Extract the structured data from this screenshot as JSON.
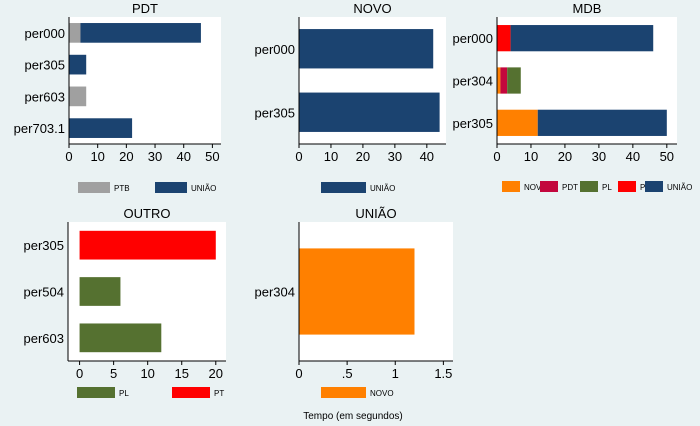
{
  "chart_data": {
    "type": "bar",
    "orientation": "horizontal",
    "stacked": true,
    "xlabel": "Tempo (em segundos)",
    "colors": {
      "PTB": "#a0a0a0",
      "UNIÃO": "#1b4370",
      "NOVO": "#ff8000",
      "PDT": "#c3073d",
      "PL": "#557130",
      "PT": "#ff0000"
    },
    "panels": [
      {
        "title": "PDT",
        "categories": [
          "per000",
          "per305",
          "per603",
          "per703.1"
        ],
        "series": [
          {
            "name": "PTB",
            "values": [
              4,
              0,
              6,
              0
            ]
          },
          {
            "name": "UNIÃO",
            "values": [
              42,
              6,
              0,
              22
            ]
          }
        ],
        "xticks": [
          "0",
          "10",
          "20",
          "30",
          "40",
          "50"
        ],
        "xtick_values": [
          0,
          10,
          20,
          30,
          40,
          50
        ],
        "xlim": [
          0,
          53
        ],
        "legend": [
          "PTB",
          "UNIÃO"
        ]
      },
      {
        "title": "NOVO",
        "categories": [
          "per000",
          "per305"
        ],
        "series": [
          {
            "name": "UNIÃO",
            "values": [
              42,
              44
            ]
          }
        ],
        "xticks": [
          "0",
          "10",
          "20",
          "30",
          "40"
        ],
        "xtick_values": [
          0,
          10,
          20,
          30,
          40
        ],
        "xlim": [
          0,
          46
        ],
        "legend": [
          "UNIÃO"
        ]
      },
      {
        "title": "MDB",
        "categories": [
          "per000",
          "per304",
          "per305"
        ],
        "series": [
          {
            "name": "NOVO",
            "values": [
              0,
              1,
              12
            ]
          },
          {
            "name": "PDT",
            "values": [
              0,
              2,
              0
            ]
          },
          {
            "name": "PL",
            "values": [
              0,
              4,
              0
            ]
          },
          {
            "name": "PT",
            "values": [
              4,
              0,
              0
            ]
          },
          {
            "name": "UNIÃO",
            "values": [
              42,
              0,
              38
            ]
          }
        ],
        "xticks": [
          "0",
          "10",
          "20",
          "30",
          "40",
          "50"
        ],
        "xtick_values": [
          0,
          10,
          20,
          30,
          40,
          50
        ],
        "xlim": [
          0,
          53
        ],
        "legend": [
          "NOVO",
          "PDT",
          "PL",
          "PT",
          "UNIÃO"
        ]
      },
      {
        "title": "OUTRO",
        "categories": [
          "per305",
          "per504",
          "per603"
        ],
        "series": [
          {
            "name": "PL",
            "values": [
              0,
              6,
              12
            ]
          },
          {
            "name": "PT",
            "values": [
              20,
              0,
              0
            ]
          }
        ],
        "xticks": [
          "0",
          "5",
          "10",
          "15",
          "20"
        ],
        "xtick_values": [
          0,
          5,
          10,
          15,
          20
        ],
        "xlim": [
          -1.7,
          21.5
        ],
        "legend": [
          "PL",
          "PT"
        ]
      },
      {
        "title": "UNIÃO",
        "categories": [
          "per304"
        ],
        "series": [
          {
            "name": "NOVO",
            "values": [
              1.2
            ]
          }
        ],
        "xticks": [
          "0",
          ".5",
          "1",
          "1.5"
        ],
        "xtick_values": [
          0,
          0.5,
          1,
          1.5
        ],
        "xlim": [
          0,
          1.6
        ],
        "legend": [
          "NOVO"
        ]
      }
    ]
  }
}
